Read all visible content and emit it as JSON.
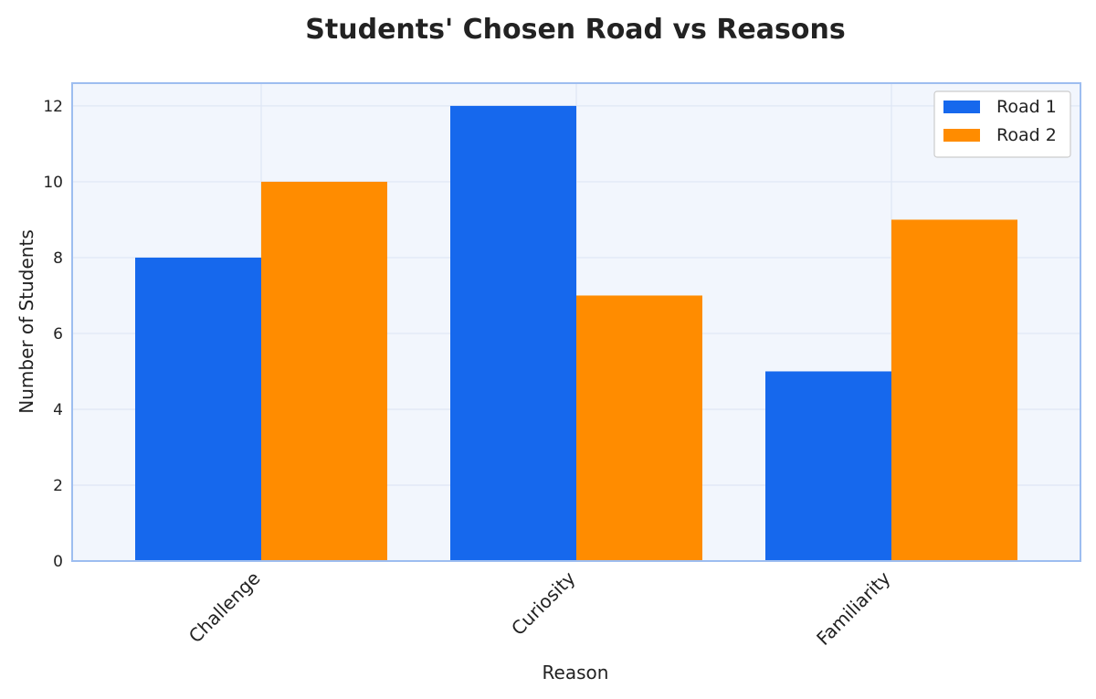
{
  "chart_data": {
    "type": "bar",
    "title": "Students' Chosen Road vs Reasons",
    "xlabel": "Reason",
    "ylabel": "Number of Students",
    "categories": [
      "Challenge",
      "Curiosity",
      "Familiarity"
    ],
    "series": [
      {
        "name": "Road 1",
        "values": [
          8,
          12,
          5
        ],
        "color": "#1668ed"
      },
      {
        "name": "Road 2",
        "values": [
          10,
          7,
          9
        ],
        "color": "#ff8c00"
      }
    ],
    "ylim": [
      0,
      12.6
    ],
    "yticks": [
      0,
      2,
      4,
      6,
      8,
      10,
      12
    ],
    "ytick_labels": [
      "0",
      "2",
      "4",
      "6",
      "8",
      "10",
      "12"
    ],
    "grid": true,
    "legend_position": "top-right",
    "plot_background": "#f2f6fd",
    "plot_border": "#9dbdf0"
  }
}
